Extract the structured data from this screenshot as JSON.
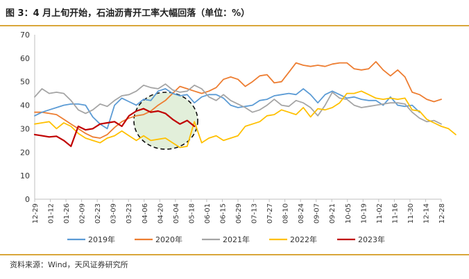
{
  "header": {
    "title": "图 3：4 月上旬开始，石油沥青开工率大幅回落（单位：%）"
  },
  "footer": {
    "source": "资料来源：Wind，天风证券研究所"
  },
  "colors": {
    "s2019": "#5b9bd5",
    "s2020": "#ed7d31",
    "s2021": "#a5a5a5",
    "s2022": "#ffc000",
    "s2023": "#c00000",
    "ellipse_fill": "#e2efda",
    "rule": "#d9a63a"
  },
  "chart_data": {
    "type": "line",
    "title": "",
    "xlabel": "",
    "ylabel": "",
    "ylim": [
      0,
      70
    ],
    "yticks": [
      0,
      10,
      20,
      30,
      40,
      50,
      60,
      70
    ],
    "x_tick_labels": [
      "12-29",
      "01-12",
      "01-26",
      "02-09",
      "02-23",
      "03-09",
      "03-23",
      "04-06",
      "04-20",
      "05-04",
      "05-18",
      "06-01",
      "06-15",
      "06-29",
      "07-13",
      "07-27",
      "08-10",
      "08-24",
      "09-07",
      "09-21",
      "10-05",
      "10-19",
      "11-02",
      "11-16",
      "11-30",
      "12-14",
      "12-28"
    ],
    "grid": false,
    "legend_position": "bottom",
    "annotation": "dashed-ellipse-highlight",
    "series": [
      {
        "name": "2019年",
        "color_key": "s2019",
        "values": [
          35.5,
          37,
          38,
          39,
          40,
          40.5,
          40.5,
          40,
          35,
          32,
          30,
          40,
          43,
          41.5,
          40,
          42.5,
          42,
          46,
          47,
          45,
          44,
          44.5,
          41,
          43.5,
          44.5,
          44.5,
          43,
          40,
          39,
          39.5,
          40,
          42,
          42.5,
          44,
          44.5,
          45,
          44.5,
          47,
          44.5,
          41,
          44.5,
          46,
          44.5,
          43,
          43.5,
          42.5,
          42,
          42,
          40,
          43.5,
          40,
          39.5,
          40,
          37
        ]
      },
      {
        "name": "2020年",
        "color_key": "s2020",
        "values": [
          37,
          37,
          36.5,
          36,
          34,
          32,
          30,
          28,
          26.5,
          26,
          27.5,
          30.5,
          33,
          34.5,
          35.5,
          36,
          37.5,
          40,
          42,
          45,
          48,
          47,
          46,
          45,
          46,
          47.5,
          51,
          52,
          51,
          48,
          50,
          52.5,
          53,
          49.5,
          50,
          54,
          58,
          57,
          56.5,
          57,
          56.5,
          57.5,
          58,
          58,
          55.5,
          55,
          55.5,
          58.5,
          55,
          52.5,
          55,
          52,
          45.5,
          44.5,
          42.5,
          41.5,
          42.5
        ]
      },
      {
        "name": "2021年",
        "color_key": "s2021",
        "values": [
          43.5,
          47,
          45,
          45.5,
          45,
          42,
          38,
          36.5,
          38,
          40.5,
          39.5,
          42,
          44,
          44.5,
          46,
          48.5,
          47.5,
          47,
          49,
          46.5,
          45.5,
          46,
          48.5,
          47,
          43.5,
          42,
          44.5,
          42,
          40.5,
          39,
          37,
          38,
          40,
          42.5,
          40,
          39.5,
          42,
          41,
          39,
          35.5,
          40,
          45.5,
          43,
          42.5,
          40,
          39,
          39.5,
          40,
          40.5,
          41,
          41,
          40.5,
          37,
          34.5,
          33,
          33.5,
          32
        ]
      },
      {
        "name": "2022年",
        "color_key": "s2022",
        "values": [
          32,
          32.5,
          33,
          30,
          32.5,
          31,
          28,
          26,
          25,
          24,
          26,
          27,
          29,
          27,
          25,
          27,
          25,
          25.5,
          26,
          24,
          22,
          22.5,
          33,
          24,
          26,
          27,
          25,
          26,
          27,
          31,
          32,
          33,
          35.5,
          36,
          38,
          37,
          36,
          39,
          35,
          38.5,
          38,
          39,
          41,
          45,
          45,
          46,
          44.5,
          43,
          42.5,
          43,
          42.5,
          43,
          38,
          37.5,
          34,
          32.5,
          31,
          30,
          27.5
        ]
      },
      {
        "name": "2023年",
        "color_key": "s2023",
        "values": [
          27.5,
          27,
          26.5,
          26.8,
          25,
          22.5,
          31,
          29.5,
          30,
          32,
          32.5,
          33,
          31,
          35.5,
          37.5,
          38.5,
          37,
          37.5,
          36.5,
          34,
          32,
          33.5,
          31
        ]
      }
    ]
  }
}
